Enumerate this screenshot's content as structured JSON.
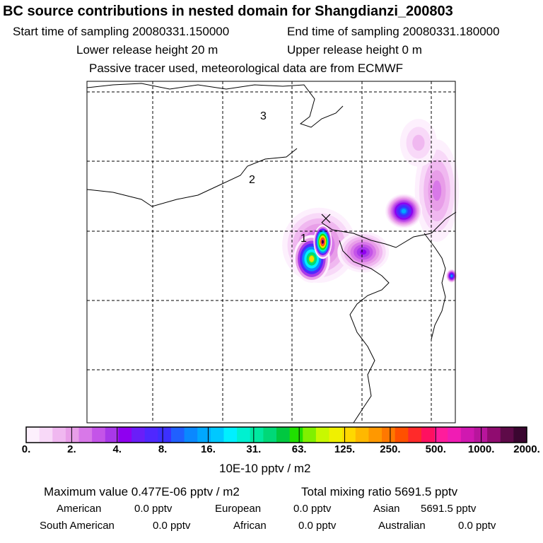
{
  "header": {
    "title": "BC  source contributions in nested domain for Shangdianzi_200803",
    "start_time": "Start time of sampling 20080331.150000",
    "end_time": "End time of sampling 20080331.180000",
    "lower_release": "Lower release height   20 m",
    "upper_release": "Upper release height    0 m",
    "tracer_note": "Passive tracer used, meteorological data are from ECMWF"
  },
  "colors": {
    "scale": [
      "#fdf0fd",
      "#f8d9f8",
      "#f0b8f0",
      "#e89ee8",
      "#d878e8",
      "#c454e8",
      "#a838e8",
      "#8f00f0",
      "#6a1ef8",
      "#4f28ff",
      "#3c30ff",
      "#2060ff",
      "#0a88ff",
      "#00a8ff",
      "#00c8ff",
      "#00f0ff",
      "#00f0d0",
      "#00e8a0",
      "#00d878",
      "#00c840",
      "#20e000",
      "#80f000",
      "#c8f800",
      "#f0f000",
      "#ffd800",
      "#ffb800",
      "#ff9800",
      "#ff7800",
      "#ff5000",
      "#ff2a2a",
      "#ff1060",
      "#ff1c9c",
      "#f01cb4",
      "#d018b0",
      "#b8159c",
      "#900c70",
      "#5e0a48",
      "#3a0630"
    ],
    "map_line": "#000000"
  },
  "chart_data": {
    "type": "heatmap",
    "title": "BC  source contributions in nested domain for Shangdianzi_200803",
    "colorbar": {
      "tick_labels": [
        "0.",
        "2.",
        "4.",
        "8.",
        "16.",
        "31.",
        "63.",
        "125.",
        "250.",
        "500.",
        "1000.",
        "2000."
      ],
      "label": "10E-10 pptv / m2",
      "scale": "log"
    },
    "markers": [
      "1",
      "2",
      "3"
    ],
    "receptor": "Shangdianzi",
    "grid": true,
    "plumes": [
      {
        "cx": 0.63,
        "cy": 0.48,
        "rx": 0.1,
        "ry": 0.11,
        "level": 6
      },
      {
        "cx": 0.75,
        "cy": 0.5,
        "rx": 0.07,
        "ry": 0.06,
        "level": 7
      },
      {
        "cx": 0.95,
        "cy": 0.32,
        "rx": 0.06,
        "ry": 0.15,
        "level": 4
      },
      {
        "cx": 0.9,
        "cy": 0.18,
        "rx": 0.05,
        "ry": 0.07,
        "level": 2
      },
      {
        "cx": 0.86,
        "cy": 0.38,
        "rx": 0.05,
        "ry": 0.05,
        "level": 13
      },
      {
        "cx": 0.61,
        "cy": 0.52,
        "rx": 0.05,
        "ry": 0.07,
        "level": 24
      },
      {
        "cx": 0.64,
        "cy": 0.47,
        "rx": 0.025,
        "ry": 0.05,
        "level": 37
      },
      {
        "cx": 0.99,
        "cy": 0.57,
        "rx": 0.015,
        "ry": 0.02,
        "level": 13
      }
    ]
  },
  "summary": {
    "max_value": "Maximum value  0.477E-06 pptv / m2",
    "total_mixing": "Total mixing ratio     5691.5 pptv",
    "regions": [
      {
        "name": "American",
        "value": "0.0 pptv"
      },
      {
        "name": "European",
        "value": "0.0 pptv"
      },
      {
        "name": "Asian",
        "value": "5691.5 pptv"
      },
      {
        "name": "South American",
        "value": "0.0 pptv"
      },
      {
        "name": "African",
        "value": "0.0 pptv"
      },
      {
        "name": "Australian",
        "value": "0.0 pptv"
      }
    ]
  }
}
